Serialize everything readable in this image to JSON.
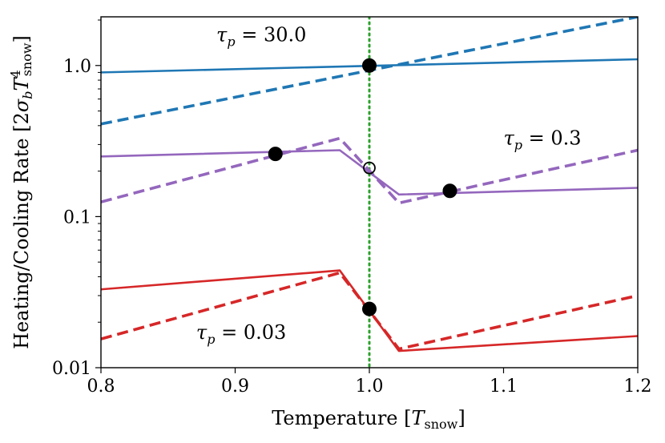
{
  "chart_data": {
    "type": "line",
    "xlabel": "Temperature [T_snow]",
    "ylabel": "Heating/Cooling Rate [2σ_b T_snow^4]",
    "xlim": [
      0.8,
      1.2
    ],
    "ylim": [
      0.01,
      2.1
    ],
    "yscale": "log",
    "x_ticks": [
      0.8,
      0.9,
      1.0,
      1.1,
      1.2
    ],
    "x_tick_labels": [
      "0.8",
      "0.9",
      "1.0",
      "1.1",
      "1.2"
    ],
    "y_ticks": [
      0.01,
      0.1,
      1.0
    ],
    "y_tick_labels": [
      "0.01",
      "0.1",
      "1.0"
    ],
    "vline": {
      "x": 1.0,
      "color": "#2ca02c",
      "style": "dotted"
    },
    "series": [
      {
        "name": "tau_p=30.0 heating",
        "label": "τp = 30.0",
        "color": "#1f77b4",
        "style": "solid",
        "x": [
          0.8,
          1.2
        ],
        "y": [
          0.9,
          1.1
        ]
      },
      {
        "name": "tau_p=30.0 cooling",
        "label": "τp = 30.0",
        "color": "#1f77b4",
        "style": "dashed",
        "x": [
          0.8,
          1.2
        ],
        "y": [
          0.41,
          2.1
        ]
      },
      {
        "name": "tau_p=0.3 heating",
        "label": "τp = 0.3",
        "color": "#9467bd",
        "style": "solid",
        "x": [
          0.8,
          0.978,
          1.022,
          1.2
        ],
        "y": [
          0.25,
          0.275,
          0.14,
          0.155
        ]
      },
      {
        "name": "tau_p=0.3 cooling",
        "label": "τp = 0.3",
        "color": "#9467bd",
        "style": "dashed",
        "x": [
          0.8,
          0.978,
          1.022,
          1.2
        ],
        "y": [
          0.125,
          0.33,
          0.123,
          0.275
        ]
      },
      {
        "name": "tau_p=0.03 heating",
        "label": "τp = 0.03",
        "color": "#d62728",
        "style": "solid",
        "x": [
          0.8,
          0.978,
          1.022,
          1.2
        ],
        "y": [
          0.033,
          0.044,
          0.0129,
          0.0162
        ]
      },
      {
        "name": "tau_p=0.03 cooling",
        "label": "τp = 0.03",
        "color": "#d62728",
        "style": "dashed",
        "x": [
          0.8,
          0.978,
          1.022,
          1.2
        ],
        "y": [
          0.0155,
          0.0425,
          0.0133,
          0.03
        ]
      }
    ],
    "equilibrium_points": [
      {
        "x": 1.0,
        "y": 1.0,
        "stable": true
      },
      {
        "x": 0.93,
        "y": 0.26,
        "stable": true
      },
      {
        "x": 1.0,
        "y": 0.21,
        "stable": false
      },
      {
        "x": 1.06,
        "y": 0.148,
        "stable": true
      },
      {
        "x": 1.0,
        "y": 0.0245,
        "stable": true
      }
    ],
    "annotations": [
      {
        "id": "tau30",
        "tau": "τ",
        "sub": "p",
        "rest": " = 30.0",
        "x": 0.886,
        "y": 1.45
      },
      {
        "id": "tau03",
        "tau": "τ",
        "sub": "p",
        "rest": " = 0.3",
        "x": 1.1,
        "y": 0.3
      },
      {
        "id": "tau003",
        "tau": "τ",
        "sub": "p",
        "rest": " = 0.03",
        "x": 0.871,
        "y": 0.0155
      }
    ]
  },
  "axis_text": {
    "xlabel_main": "Temperature [",
    "xlabel_T": "T",
    "xlabel_sub": "snow",
    "xlabel_close": "]",
    "ylabel_main": "Heating/Cooling Rate [2",
    "ylabel_sigma": "σ",
    "ylabel_sigma_sub": "b",
    "ylabel_T": "T",
    "ylabel_sup": "4",
    "ylabel_sub": "snow",
    "ylabel_close": "]"
  }
}
